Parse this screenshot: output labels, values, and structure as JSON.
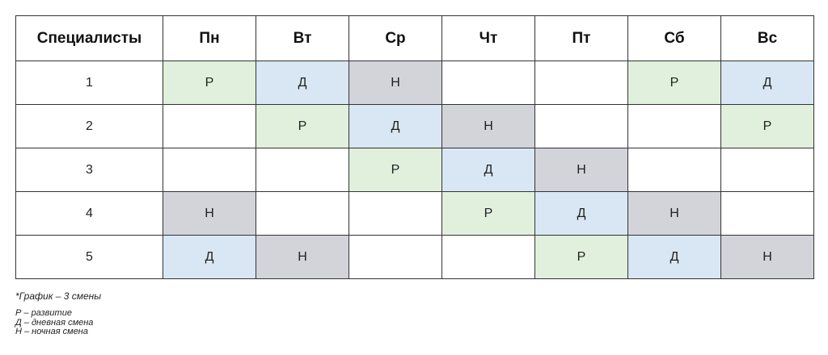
{
  "colors": {
    "Р": "#e0f0dc",
    "Д": "#d8e7f3",
    "Н": "#d3d3da",
    "empty": "#ffffff",
    "border": "#333333"
  },
  "table": {
    "header_first": "Специалисты",
    "days": [
      "Пн",
      "Вт",
      "Ср",
      "Чт",
      "Пт",
      "Сб",
      "Вс"
    ],
    "rows": [
      {
        "specialist": "1",
        "cells": [
          "Р",
          "Д",
          "Н",
          "",
          "",
          "Р",
          "Д"
        ]
      },
      {
        "specialist": "2",
        "cells": [
          "",
          "Р",
          "Д",
          "Н",
          "",
          "",
          "Р"
        ]
      },
      {
        "specialist": "3",
        "cells": [
          "",
          "",
          "Р",
          "Д",
          "Н",
          "",
          ""
        ]
      },
      {
        "specialist": "4",
        "cells": [
          "Н",
          "",
          "",
          "Р",
          "Д",
          "Н",
          ""
        ]
      },
      {
        "specialist": "5",
        "cells": [
          "Д",
          "Н",
          "",
          "",
          "Р",
          "Д",
          "Н"
        ]
      }
    ]
  },
  "legend": {
    "note": "*График – 3 смены",
    "items": [
      "Р – развитие",
      "Д – дневная смена",
      "Н – ночная смена"
    ]
  }
}
